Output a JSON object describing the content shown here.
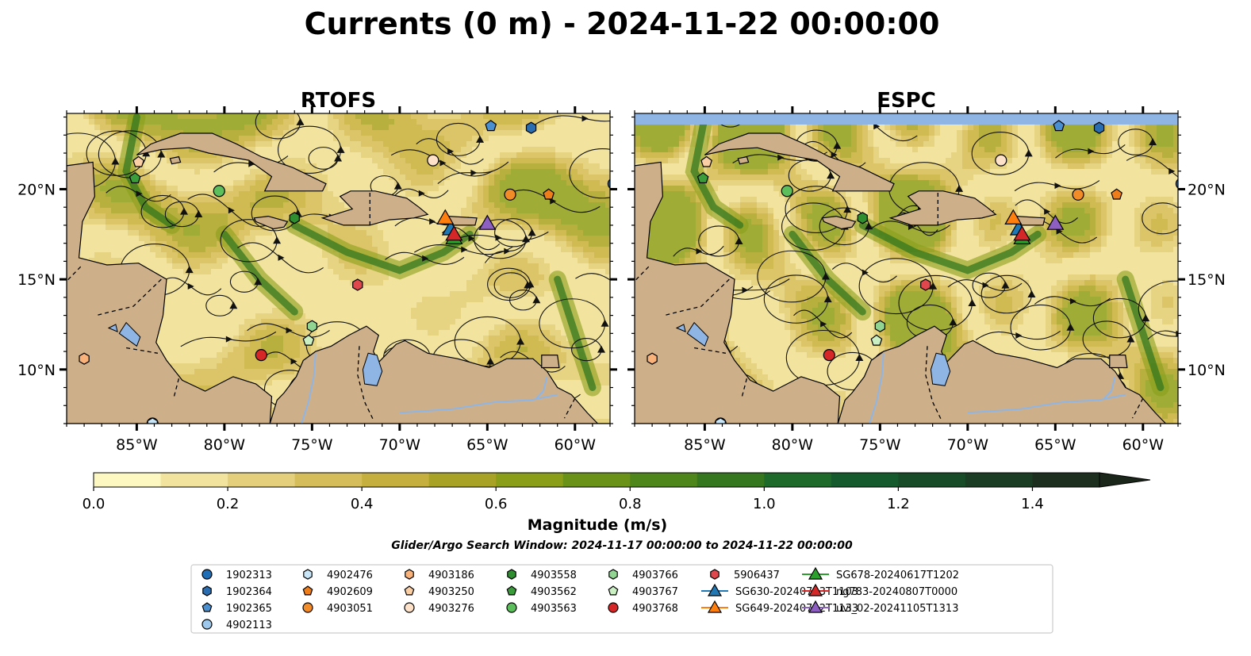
{
  "figure": {
    "title": "Currents (0 m) - 2024-11-22 00:00:00",
    "search_window": "Glider/Argo Search Window: 2024-11-17 00:00:00 to 2024-11-22 00:00:00"
  },
  "chart_data": {
    "type": "heatmap",
    "panels": [
      {
        "title": "RTOFS",
        "model": "rtofs"
      },
      {
        "title": "ESPC",
        "model": "espc"
      }
    ],
    "xlim": [
      -89,
      -58
    ],
    "ylim": [
      7,
      24.2
    ],
    "x_ticks": [
      {
        "value": -85,
        "label": "85°W"
      },
      {
        "value": -80,
        "label": "80°W"
      },
      {
        "value": -75,
        "label": "75°W"
      },
      {
        "value": -70,
        "label": "70°W"
      },
      {
        "value": -65,
        "label": "65°W"
      },
      {
        "value": -60,
        "label": "60°W"
      }
    ],
    "y_ticks": [
      {
        "value": 10,
        "label": "10°N"
      },
      {
        "value": 15,
        "label": "15°N"
      },
      {
        "value": 20,
        "label": "20°N"
      }
    ],
    "colorbar": {
      "label": "Magnitude (m/s)",
      "range": [
        0,
        1.5
      ],
      "extend": "max",
      "ticks": [
        {
          "value": 0.0,
          "label": "0.0"
        },
        {
          "value": 0.2,
          "label": "0.2"
        },
        {
          "value": 0.4,
          "label": "0.4"
        },
        {
          "value": 0.6,
          "label": "0.6"
        },
        {
          "value": 0.8,
          "label": "0.8"
        },
        {
          "value": 1.0,
          "label": "1.0"
        },
        {
          "value": 1.2,
          "label": "1.2"
        },
        {
          "value": 1.4,
          "label": "1.4"
        }
      ],
      "colors": [
        "#fdf7c1",
        "#f2e49e",
        "#e4cf7c",
        "#d4bd5a",
        "#c5b03f",
        "#a8a327",
        "#8a9e1a",
        "#6b9218",
        "#4f861c",
        "#34771f",
        "#1e6a2a",
        "#155a2c",
        "#184b28",
        "#1b3d24",
        "#1d3020",
        "#1a261a"
      ]
    },
    "land_color": "#cdb08a",
    "water_color": "#8fb5e5",
    "markers": [
      {
        "id": "1902313",
        "shape": "circle",
        "color": "#1f6db4",
        "lon": -57.8,
        "lat": 20.3
      },
      {
        "id": "1902364",
        "shape": "hexagon",
        "color": "#2a6db0",
        "lon": -62.5,
        "lat": 23.4
      },
      {
        "id": "1902365",
        "shape": "pentagon",
        "color": "#4a8fd0",
        "lon": -64.8,
        "lat": 23.5
      },
      {
        "id": "4902113",
        "shape": "circle",
        "color": "#9ec9ec",
        "lon": -84.1,
        "lat": 7.0
      },
      {
        "id": "4902476",
        "shape": "hexagon",
        "color": "#c9e6f9",
        "lon": -84.1,
        "lat": 7.0
      },
      {
        "id": "4902609",
        "shape": "pentagon",
        "color": "#ef7d1a",
        "lon": -61.5,
        "lat": 19.7
      },
      {
        "id": "4903051",
        "shape": "circle",
        "color": "#f28c28",
        "lon": -63.7,
        "lat": 19.7
      },
      {
        "id": "4903186",
        "shape": "hexagon",
        "color": "#f9b27a",
        "lon": -88.0,
        "lat": 10.6
      },
      {
        "id": "4903250",
        "shape": "pentagon",
        "color": "#fbcfa6",
        "lon": -84.9,
        "lat": 21.5
      },
      {
        "id": "4903276",
        "shape": "circle",
        "color": "#fde1c8",
        "lon": -68.1,
        "lat": 21.6
      },
      {
        "id": "4903558",
        "shape": "hexagon",
        "color": "#2f8e2f",
        "lon": -76.0,
        "lat": 18.4
      },
      {
        "id": "4903562",
        "shape": "pentagon",
        "color": "#3a9c3a",
        "lon": -85.1,
        "lat": 20.6
      },
      {
        "id": "4903563",
        "shape": "circle",
        "color": "#5cbf5c",
        "lon": -80.3,
        "lat": 19.9
      },
      {
        "id": "4903766",
        "shape": "hexagon",
        "color": "#92d492",
        "lon": -75.0,
        "lat": 12.4
      },
      {
        "id": "4903767",
        "shape": "pentagon",
        "color": "#c9efc2",
        "lon": -75.2,
        "lat": 11.6
      },
      {
        "id": "4903768",
        "shape": "circle",
        "color": "#d62728",
        "lon": -77.9,
        "lat": 10.8
      },
      {
        "id": "5906437",
        "shape": "hexagon",
        "color": "#e0474c",
        "lon": -72.4,
        "lat": 14.7
      },
      {
        "id": "SG630-20240713T1103",
        "shape": "triangle",
        "color": "#1f77b4",
        "lon": -67.1,
        "lat": 17.8
      },
      {
        "id": "SG649-20240712T1133",
        "shape": "triangle",
        "color": "#ff7f0e",
        "lon": -67.4,
        "lat": 18.4
      },
      {
        "id": "SG678-20240617T1202",
        "shape": "triangle",
        "color": "#2ca02c",
        "lon": -66.9,
        "lat": 17.3
      },
      {
        "id": "ng783-20240807T0000",
        "shape": "triangle",
        "color": "#d62728",
        "lon": -66.9,
        "lat": 17.5
      },
      {
        "id": "uvi_02-20241105T1313",
        "shape": "triangle",
        "color": "#8c5fc0",
        "lon": -65.0,
        "lat": 18.1
      }
    ]
  }
}
